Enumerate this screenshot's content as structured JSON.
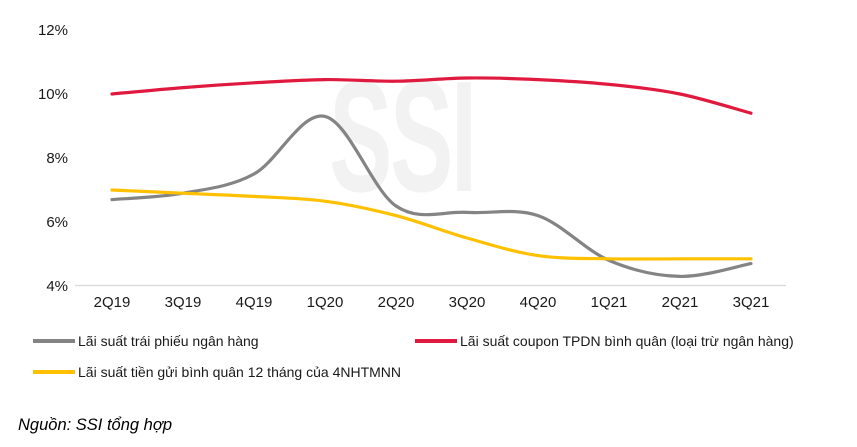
{
  "watermark": "SSI",
  "source_note": "Nguồn: SSI tổng hợp",
  "colors": {
    "axis_line": "#d9d9d9",
    "label_text": "#1a1a1a",
    "watermark": "#f2f2f2"
  },
  "chart_data": {
    "type": "line",
    "categories": [
      "2Q19",
      "3Q19",
      "4Q19",
      "1Q20",
      "2Q20",
      "3Q20",
      "4Q20",
      "1Q21",
      "2Q21",
      "3Q21"
    ],
    "series": [
      {
        "name": "Lãi suất trái phiếu ngân hàng",
        "color": "#848484",
        "values": [
          6.7,
          6.9,
          7.5,
          9.3,
          6.5,
          6.3,
          6.2,
          4.8,
          4.3,
          4.7
        ]
      },
      {
        "name": "Lãi suất coupon TPDN bình quân (loại trừ ngân hàng)",
        "color": "#e0193e",
        "values": [
          10.0,
          10.2,
          10.35,
          10.45,
          10.4,
          10.5,
          10.45,
          10.3,
          10.0,
          9.4
        ]
      },
      {
        "name": "Lãi suất tiền gửi bình quân 12 tháng của 4NHTMNN",
        "color": "#ffc000",
        "values": [
          7.0,
          6.9,
          6.8,
          6.65,
          6.2,
          5.5,
          4.95,
          4.85,
          4.85,
          4.85
        ]
      }
    ],
    "title": "",
    "xlabel": "",
    "ylabel": "",
    "y_ticks": [
      "12%",
      "10%",
      "8%",
      "6%",
      "4%"
    ],
    "y_tick_values": [
      12,
      10,
      8,
      6,
      4
    ],
    "ylim": [
      4,
      12
    ],
    "grid": false,
    "legend_position": "bottom"
  }
}
